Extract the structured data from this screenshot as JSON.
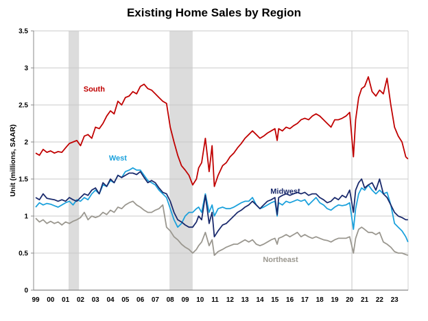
{
  "chart_data": {
    "type": "line",
    "title": "Existing Home Sales by Region",
    "xlabel": "",
    "ylabel": "Unit (millions, SAAR)",
    "ylim": [
      0,
      3.5
    ],
    "yticks": [
      "0",
      "0.5",
      "1",
      "1.5",
      "2",
      "2.5",
      "3",
      "3.5"
    ],
    "ytick_values": [
      0,
      0.5,
      1,
      1.5,
      2,
      2.5,
      3,
      3.5
    ],
    "xlim": [
      1999,
      2023.9
    ],
    "xticks": [
      "99",
      "00",
      "01",
      "02",
      "03",
      "04",
      "05",
      "06",
      "07",
      "08",
      "09",
      "10",
      "11",
      "12",
      "13",
      "14",
      "15",
      "16",
      "17",
      "18",
      "19",
      "20",
      "21",
      "22",
      "23"
    ],
    "grid": true,
    "recessions": [
      {
        "start": 2001.2,
        "end": 2001.9
      },
      {
        "start": 2007.95,
        "end": 2009.5
      },
      {
        "start": 2020.15,
        "end": 2020.3
      }
    ],
    "series": [
      {
        "name": "South",
        "color": "#c00000",
        "label_at": [
          2002.2,
          2.68
        ],
        "x": [
          1999.0,
          1999.25,
          1999.5,
          1999.75,
          2000.0,
          2000.25,
          2000.5,
          2000.75,
          2001.0,
          2001.25,
          2001.5,
          2001.75,
          2002.0,
          2002.25,
          2002.5,
          2002.75,
          2003.0,
          2003.25,
          2003.5,
          2003.75,
          2004.0,
          2004.25,
          2004.5,
          2004.75,
          2005.0,
          2005.25,
          2005.5,
          2005.75,
          2006.0,
          2006.25,
          2006.5,
          2006.75,
          2007.0,
          2007.25,
          2007.5,
          2007.75,
          2008.0,
          2008.25,
          2008.5,
          2008.75,
          2009.0,
          2009.25,
          2009.5,
          2009.75,
          2009.9,
          2010.1,
          2010.35,
          2010.6,
          2010.8,
          2010.95,
          2011.2,
          2011.5,
          2011.75,
          2012.0,
          2012.25,
          2012.5,
          2012.75,
          2013.0,
          2013.25,
          2013.5,
          2013.75,
          2014.0,
          2014.25,
          2014.5,
          2014.75,
          2015.0,
          2015.15,
          2015.25,
          2015.5,
          2015.75,
          2016.0,
          2016.25,
          2016.5,
          2016.75,
          2017.0,
          2017.25,
          2017.5,
          2017.75,
          2018.0,
          2018.25,
          2018.5,
          2018.75,
          2019.0,
          2019.25,
          2019.5,
          2019.75,
          2020.0,
          2020.25,
          2020.4,
          2020.6,
          2020.8,
          2021.0,
          2021.25,
          2021.5,
          2021.75,
          2022.0,
          2022.25,
          2022.5,
          2022.75,
          2023.0,
          2023.25,
          2023.5,
          2023.75,
          2023.9
        ],
        "values": [
          1.85,
          1.82,
          1.9,
          1.86,
          1.88,
          1.85,
          1.87,
          1.86,
          1.92,
          1.98,
          2.0,
          2.02,
          1.95,
          2.08,
          2.1,
          2.05,
          2.2,
          2.18,
          2.25,
          2.35,
          2.42,
          2.38,
          2.55,
          2.5,
          2.6,
          2.62,
          2.68,
          2.65,
          2.75,
          2.78,
          2.72,
          2.7,
          2.65,
          2.6,
          2.55,
          2.52,
          2.2,
          2.0,
          1.82,
          1.68,
          1.62,
          1.55,
          1.42,
          1.5,
          1.65,
          1.72,
          2.05,
          1.6,
          1.95,
          1.4,
          1.55,
          1.68,
          1.72,
          1.8,
          1.85,
          1.92,
          1.98,
          2.05,
          2.1,
          2.15,
          2.1,
          2.05,
          2.08,
          2.12,
          2.15,
          2.18,
          2.02,
          2.18,
          2.15,
          2.2,
          2.18,
          2.22,
          2.25,
          2.3,
          2.32,
          2.3,
          2.35,
          2.38,
          2.35,
          2.3,
          2.25,
          2.2,
          2.3,
          2.3,
          2.32,
          2.35,
          2.4,
          1.8,
          2.3,
          2.6,
          2.72,
          2.75,
          2.88,
          2.68,
          2.62,
          2.7,
          2.65,
          2.86,
          2.5,
          2.2,
          2.08,
          2.0,
          1.8,
          1.77
        ],
        "color_hex": "#c00000"
      },
      {
        "name": "West",
        "color": "#1ba1dc",
        "label_at": [
          2003.9,
          1.75
        ],
        "x": [
          1999.0,
          1999.25,
          1999.5,
          1999.75,
          2000.0,
          2000.25,
          2000.5,
          2000.75,
          2001.0,
          2001.25,
          2001.5,
          2001.75,
          2002.0,
          2002.25,
          2002.5,
          2002.75,
          2003.0,
          2003.25,
          2003.5,
          2003.75,
          2004.0,
          2004.25,
          2004.5,
          2004.75,
          2005.0,
          2005.25,
          2005.5,
          2005.75,
          2006.0,
          2006.25,
          2006.5,
          2006.75,
          2007.0,
          2007.25,
          2007.5,
          2007.75,
          2008.0,
          2008.25,
          2008.5,
          2008.75,
          2009.0,
          2009.25,
          2009.5,
          2009.75,
          2009.9,
          2010.1,
          2010.35,
          2010.6,
          2010.8,
          2010.95,
          2011.2,
          2011.5,
          2011.75,
          2012.0,
          2012.25,
          2012.5,
          2012.75,
          2013.0,
          2013.25,
          2013.5,
          2013.75,
          2014.0,
          2014.25,
          2014.5,
          2014.75,
          2015.0,
          2015.15,
          2015.25,
          2015.5,
          2015.75,
          2016.0,
          2016.25,
          2016.5,
          2016.75,
          2017.0,
          2017.25,
          2017.5,
          2017.75,
          2018.0,
          2018.25,
          2018.5,
          2018.75,
          2019.0,
          2019.25,
          2019.5,
          2019.75,
          2020.0,
          2020.25,
          2020.4,
          2020.6,
          2020.8,
          2021.0,
          2021.25,
          2021.5,
          2021.75,
          2022.0,
          2022.25,
          2022.5,
          2022.75,
          2023.0,
          2023.25,
          2023.5,
          2023.75,
          2023.9
        ],
        "values": [
          1.12,
          1.18,
          1.15,
          1.17,
          1.16,
          1.14,
          1.12,
          1.15,
          1.18,
          1.2,
          1.15,
          1.22,
          1.2,
          1.25,
          1.22,
          1.3,
          1.35,
          1.3,
          1.42,
          1.4,
          1.48,
          1.45,
          1.55,
          1.52,
          1.6,
          1.62,
          1.65,
          1.62,
          1.62,
          1.55,
          1.48,
          1.45,
          1.42,
          1.35,
          1.3,
          1.25,
          1.1,
          0.95,
          0.85,
          0.9,
          1.0,
          1.05,
          1.05,
          1.1,
          1.12,
          1.05,
          1.3,
          1.05,
          1.15,
          1.0,
          1.1,
          1.12,
          1.1,
          1.1,
          1.12,
          1.15,
          1.18,
          1.2,
          1.2,
          1.25,
          1.15,
          1.1,
          1.12,
          1.15,
          1.18,
          1.2,
          1.0,
          1.18,
          1.15,
          1.2,
          1.18,
          1.2,
          1.22,
          1.2,
          1.22,
          1.15,
          1.2,
          1.25,
          1.18,
          1.15,
          1.1,
          1.08,
          1.12,
          1.15,
          1.14,
          1.15,
          1.18,
          0.82,
          1.1,
          1.3,
          1.38,
          1.35,
          1.42,
          1.35,
          1.3,
          1.35,
          1.3,
          1.32,
          1.15,
          0.9,
          0.85,
          0.8,
          0.72,
          0.65
        ],
        "color_hex": "#1ba1dc"
      },
      {
        "name": "Midwest",
        "color": "#1a2a6c",
        "label_at": [
          2014.7,
          1.3
        ],
        "x": [
          1999.0,
          1999.25,
          1999.5,
          1999.75,
          2000.0,
          2000.25,
          2000.5,
          2000.75,
          2001.0,
          2001.25,
          2001.5,
          2001.75,
          2002.0,
          2002.25,
          2002.5,
          2002.75,
          2003.0,
          2003.25,
          2003.5,
          2003.75,
          2004.0,
          2004.25,
          2004.5,
          2004.75,
          2005.0,
          2005.25,
          2005.5,
          2005.75,
          2006.0,
          2006.25,
          2006.5,
          2006.75,
          2007.0,
          2007.25,
          2007.5,
          2007.75,
          2008.0,
          2008.25,
          2008.5,
          2008.75,
          2009.0,
          2009.25,
          2009.5,
          2009.75,
          2009.9,
          2010.1,
          2010.35,
          2010.6,
          2010.8,
          2010.95,
          2011.2,
          2011.5,
          2011.75,
          2012.0,
          2012.25,
          2012.5,
          2012.75,
          2013.0,
          2013.25,
          2013.5,
          2013.75,
          2014.0,
          2014.25,
          2014.5,
          2014.75,
          2015.0,
          2015.15,
          2015.25,
          2015.5,
          2015.75,
          2016.0,
          2016.25,
          2016.5,
          2016.75,
          2017.0,
          2017.25,
          2017.5,
          2017.75,
          2018.0,
          2018.25,
          2018.5,
          2018.75,
          2019.0,
          2019.25,
          2019.5,
          2019.75,
          2020.0,
          2020.25,
          2020.4,
          2020.6,
          2020.8,
          2021.0,
          2021.25,
          2021.5,
          2021.75,
          2022.0,
          2022.25,
          2022.5,
          2022.75,
          2023.0,
          2023.25,
          2023.5,
          2023.75,
          2023.9
        ],
        "values": [
          1.25,
          1.22,
          1.3,
          1.24,
          1.23,
          1.22,
          1.2,
          1.22,
          1.2,
          1.25,
          1.22,
          1.2,
          1.25,
          1.3,
          1.28,
          1.35,
          1.38,
          1.3,
          1.45,
          1.4,
          1.5,
          1.45,
          1.55,
          1.52,
          1.55,
          1.58,
          1.58,
          1.56,
          1.6,
          1.52,
          1.45,
          1.48,
          1.45,
          1.38,
          1.32,
          1.3,
          1.2,
          1.05,
          0.95,
          0.92,
          0.88,
          0.85,
          0.85,
          0.92,
          1.0,
          0.95,
          1.28,
          0.9,
          1.05,
          0.72,
          0.8,
          0.88,
          0.9,
          0.95,
          1.0,
          1.05,
          1.08,
          1.12,
          1.15,
          1.2,
          1.15,
          1.1,
          1.15,
          1.2,
          1.22,
          1.25,
          1.02,
          1.25,
          1.28,
          1.3,
          1.28,
          1.3,
          1.32,
          1.3,
          1.32,
          1.28,
          1.3,
          1.3,
          1.25,
          1.22,
          1.18,
          1.2,
          1.25,
          1.22,
          1.28,
          1.25,
          1.35,
          1.05,
          1.35,
          1.45,
          1.5,
          1.38,
          1.42,
          1.45,
          1.35,
          1.5,
          1.3,
          1.25,
          1.15,
          1.05,
          1.0,
          0.98,
          0.95,
          0.95
        ],
        "color_hex": "#1a2a6c"
      },
      {
        "name": "Northeast",
        "color": "#9a978f",
        "label_at": [
          2014.2,
          0.38
        ],
        "x": [
          1999.0,
          1999.25,
          1999.5,
          1999.75,
          2000.0,
          2000.25,
          2000.5,
          2000.75,
          2001.0,
          2001.25,
          2001.5,
          2001.75,
          2002.0,
          2002.25,
          2002.5,
          2002.75,
          2003.0,
          2003.25,
          2003.5,
          2003.75,
          2004.0,
          2004.25,
          2004.5,
          2004.75,
          2005.0,
          2005.25,
          2005.5,
          2005.75,
          2006.0,
          2006.25,
          2006.5,
          2006.75,
          2007.0,
          2007.25,
          2007.5,
          2007.75,
          2008.0,
          2008.25,
          2008.5,
          2008.75,
          2009.0,
          2009.25,
          2009.5,
          2009.75,
          2009.9,
          2010.1,
          2010.35,
          2010.6,
          2010.8,
          2010.95,
          2011.2,
          2011.5,
          2011.75,
          2012.0,
          2012.25,
          2012.5,
          2012.75,
          2013.0,
          2013.25,
          2013.5,
          2013.75,
          2014.0,
          2014.25,
          2014.5,
          2014.75,
          2015.0,
          2015.15,
          2015.25,
          2015.5,
          2015.75,
          2016.0,
          2016.25,
          2016.5,
          2016.75,
          2017.0,
          2017.25,
          2017.5,
          2017.75,
          2018.0,
          2018.25,
          2018.5,
          2018.75,
          2019.0,
          2019.25,
          2019.5,
          2019.75,
          2020.0,
          2020.25,
          2020.4,
          2020.6,
          2020.8,
          2021.0,
          2021.25,
          2021.5,
          2021.75,
          2022.0,
          2022.25,
          2022.5,
          2022.75,
          2023.0,
          2023.25,
          2023.5,
          2023.75,
          2023.9
        ],
        "values": [
          0.97,
          0.92,
          0.95,
          0.9,
          0.93,
          0.9,
          0.92,
          0.88,
          0.92,
          0.9,
          0.93,
          0.95,
          0.98,
          1.05,
          0.95,
          1.0,
          0.98,
          1.0,
          1.05,
          1.02,
          1.08,
          1.05,
          1.12,
          1.1,
          1.15,
          1.18,
          1.2,
          1.15,
          1.12,
          1.08,
          1.05,
          1.05,
          1.08,
          1.1,
          1.15,
          0.85,
          0.8,
          0.72,
          0.68,
          0.62,
          0.58,
          0.55,
          0.5,
          0.55,
          0.6,
          0.65,
          0.78,
          0.6,
          0.68,
          0.47,
          0.52,
          0.55,
          0.58,
          0.6,
          0.62,
          0.62,
          0.65,
          0.68,
          0.65,
          0.68,
          0.62,
          0.6,
          0.62,
          0.65,
          0.68,
          0.7,
          0.62,
          0.7,
          0.72,
          0.75,
          0.72,
          0.75,
          0.78,
          0.72,
          0.75,
          0.72,
          0.7,
          0.72,
          0.7,
          0.68,
          0.67,
          0.65,
          0.68,
          0.7,
          0.7,
          0.7,
          0.72,
          0.5,
          0.7,
          0.82,
          0.85,
          0.82,
          0.78,
          0.78,
          0.75,
          0.78,
          0.65,
          0.62,
          0.58,
          0.52,
          0.5,
          0.5,
          0.48,
          0.47
        ],
        "color_hex": "#9a978f"
      }
    ]
  }
}
